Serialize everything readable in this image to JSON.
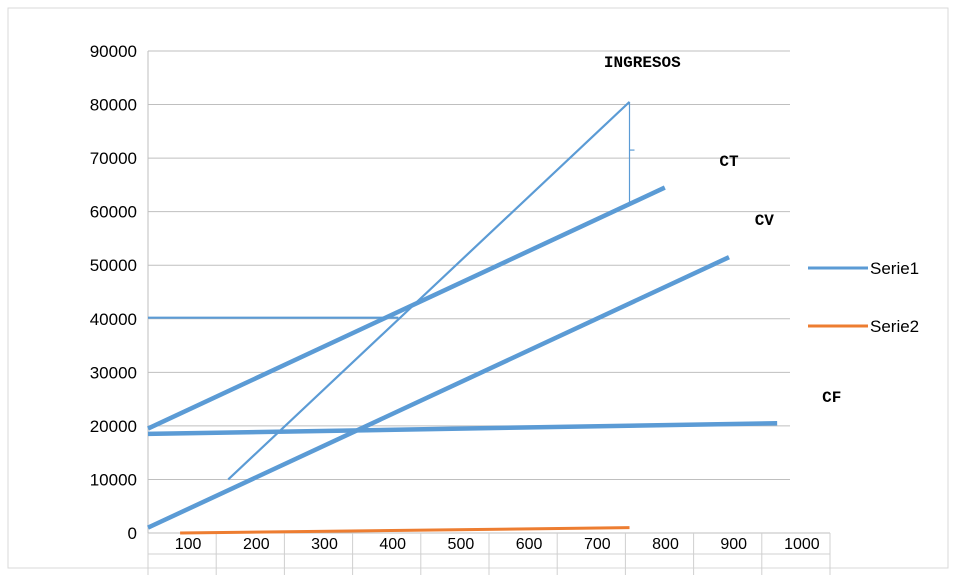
{
  "chart_data": {
    "type": "line",
    "ylim": [
      0,
      90000
    ],
    "y_ticks": [
      "0",
      "10000",
      "20000",
      "30000",
      "40000",
      "50000",
      "60000",
      "70000",
      "80000",
      "90000"
    ],
    "x_ticks": [
      "100",
      "200",
      "300",
      "400",
      "500",
      "600",
      "700",
      "800",
      "900",
      "1000"
    ],
    "grid": "horizontal",
    "legend_position": "right",
    "legend": [
      {
        "name": "Serie1",
        "color": "#5b9bd5"
      },
      {
        "name": "Serie2",
        "color": "#ed7d31"
      }
    ],
    "series": [
      {
        "label": "INGRESOS",
        "color": "#5b9bd5",
        "points": [
          [
            125,
            10000
          ],
          [
            750,
            80500
          ]
        ]
      },
      {
        "label": "CT",
        "color": "#5b9bd5",
        "points": [
          [
            0,
            19500
          ],
          [
            805,
            64500
          ]
        ]
      },
      {
        "label": "CV",
        "color": "#5b9bd5",
        "points": [
          [
            0,
            1000
          ],
          [
            905,
            51500
          ]
        ]
      },
      {
        "label": "CF",
        "color": "#5b9bd5",
        "points": [
          [
            0,
            18500
          ],
          [
            980,
            20500
          ]
        ]
      },
      {
        "label": "",
        "color": "#5b9bd5",
        "points": [
          [
            0,
            40200
          ],
          [
            390,
            40200
          ]
        ]
      },
      {
        "label": "",
        "color": "#ed7d31",
        "points": [
          [
            50,
            0
          ],
          [
            750,
            1000
          ]
        ]
      }
    ],
    "annotations": [
      {
        "text": "INGRESOS",
        "x": 770,
        "y": 87000
      },
      {
        "text": "CT",
        "x": 905,
        "y": 68500
      },
      {
        "text": "CV",
        "x": 960,
        "y": 57500
      },
      {
        "text": "CF",
        "x": 1065,
        "y": 24500
      }
    ],
    "bracket": {
      "x": 750,
      "y_top": 80500,
      "y_mid": 71500,
      "y_bottom": 61500
    }
  }
}
